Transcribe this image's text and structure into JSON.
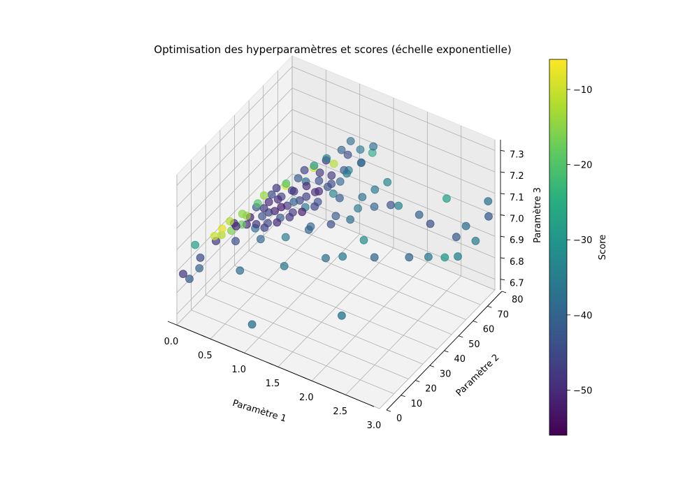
{
  "chart_data": {
    "type": "scatter",
    "projection": "3d",
    "title": "Optimisation des hyperparamètres et scores (échelle exponentielle)",
    "xlabel": "Paramètre 1",
    "ylabel": "Paramètre 2",
    "zlabel": "Paramètre 3",
    "colorbar_label": "Score",
    "colormap": "viridis",
    "xlim": [
      0.0,
      3.0
    ],
    "ylim": [
      0,
      80
    ],
    "zlim": [
      6.65,
      7.35
    ],
    "clim": [
      -56,
      -6
    ],
    "x_ticks": [
      "0.0",
      "0.5",
      "1.0",
      "1.5",
      "2.0",
      "2.5",
      "3.0"
    ],
    "y_ticks": [
      "0",
      "10",
      "20",
      "30",
      "40",
      "50",
      "60",
      "70",
      "80"
    ],
    "z_ticks": [
      "6.7",
      "6.8",
      "6.9",
      "7.0",
      "7.1",
      "7.2",
      "7.3"
    ],
    "colorbar_ticks": [
      "−10",
      "−20",
      "−30",
      "−40",
      "−50"
    ],
    "grid": true,
    "points": [
      [
        0.05,
        2,
        6.88,
        -48
      ],
      [
        0.08,
        5,
        6.84,
        -42
      ],
      [
        0.1,
        8,
        6.98,
        -28
      ],
      [
        0.12,
        10,
        6.86,
        -40
      ],
      [
        0.22,
        6,
        6.95,
        -45
      ],
      [
        0.3,
        12,
        7.02,
        -10
      ],
      [
        0.35,
        15,
        7.04,
        -8
      ],
      [
        0.4,
        18,
        7.06,
        -12
      ],
      [
        0.45,
        20,
        7.03,
        -50
      ],
      [
        0.5,
        22,
        7.08,
        -15
      ],
      [
        0.55,
        25,
        7.05,
        -52
      ],
      [
        0.6,
        28,
        7.1,
        -20
      ],
      [
        0.65,
        30,
        7.07,
        -48
      ],
      [
        0.7,
        33,
        7.12,
        -45
      ],
      [
        0.75,
        35,
        7.09,
        -50
      ],
      [
        0.8,
        38,
        7.14,
        -9
      ],
      [
        0.85,
        40,
        7.11,
        -46
      ],
      [
        0.9,
        42,
        7.16,
        -42
      ],
      [
        0.95,
        45,
        7.13,
        -38
      ],
      [
        1.0,
        48,
        7.18,
        -10
      ],
      [
        1.05,
        50,
        7.15,
        -48
      ],
      [
        1.1,
        52,
        7.2,
        -50
      ],
      [
        1.15,
        55,
        7.17,
        -12
      ],
      [
        1.2,
        58,
        7.22,
        -40
      ],
      [
        1.25,
        60,
        7.19,
        -45
      ],
      [
        0.48,
        26,
        7.0,
        -50
      ],
      [
        0.58,
        32,
        7.01,
        -44
      ],
      [
        0.68,
        36,
        7.02,
        -52
      ],
      [
        0.78,
        40,
        7.03,
        -48
      ],
      [
        0.88,
        44,
        7.04,
        -46
      ],
      [
        0.98,
        50,
        7.05,
        -50
      ],
      [
        1.08,
        54,
        7.06,
        -44
      ],
      [
        1.18,
        58,
        7.07,
        -40
      ],
      [
        0.52,
        30,
        6.96,
        -38
      ],
      [
        0.62,
        34,
        6.97,
        -46
      ],
      [
        0.72,
        38,
        6.98,
        -42
      ],
      [
        0.82,
        42,
        6.99,
        -48
      ],
      [
        0.92,
        46,
        7.0,
        -36
      ],
      [
        1.02,
        50,
        7.01,
        -44
      ],
      [
        1.12,
        56,
        7.02,
        -34
      ],
      [
        1.22,
        62,
        7.1,
        -35
      ],
      [
        1.32,
        66,
        7.12,
        -38
      ],
      [
        1.4,
        70,
        7.15,
        -26
      ],
      [
        0.4,
        22,
        6.94,
        -44
      ],
      [
        0.6,
        30,
        6.92,
        -40
      ],
      [
        0.8,
        38,
        6.9,
        -36
      ],
      [
        1.0,
        46,
        6.92,
        -40
      ],
      [
        1.2,
        54,
        6.94,
        -42
      ],
      [
        1.4,
        60,
        6.96,
        -36
      ],
      [
        1.6,
        62,
        6.98,
        -40
      ],
      [
        1.8,
        64,
        7.0,
        -44
      ],
      [
        0.55,
        18,
        6.85,
        -38
      ],
      [
        0.95,
        30,
        6.84,
        -36
      ],
      [
        1.35,
        40,
        6.86,
        -38
      ],
      [
        1.7,
        50,
        6.92,
        -32
      ],
      [
        2.0,
        60,
        7.05,
        -34
      ],
      [
        2.2,
        65,
        7.0,
        -40
      ],
      [
        2.3,
        68,
        6.95,
        -44
      ],
      [
        2.5,
        70,
        7.08,
        -28
      ],
      [
        2.6,
        72,
        6.9,
        -42
      ],
      [
        2.7,
        74,
        6.95,
        -38
      ],
      [
        2.8,
        76,
        6.88,
        -36
      ],
      [
        2.95,
        78,
        7.0,
        -42
      ],
      [
        2.9,
        80,
        7.05,
        -38
      ],
      [
        2.4,
        62,
        6.85,
        -36
      ],
      [
        2.6,
        64,
        6.86,
        -30
      ],
      [
        2.75,
        66,
        6.87,
        -34
      ],
      [
        2.2,
        58,
        6.85,
        -40
      ],
      [
        1.9,
        48,
        6.88,
        -40
      ],
      [
        1.6,
        40,
        6.9,
        -36
      ],
      [
        1.8,
        30,
        6.72,
        -36
      ],
      [
        0.9,
        10,
        6.7,
        -38
      ],
      [
        1.15,
        50,
        7.23,
        -34
      ],
      [
        1.05,
        46,
        7.21,
        -30
      ],
      [
        0.95,
        44,
        7.19,
        -46
      ],
      [
        1.25,
        62,
        7.24,
        -38
      ],
      [
        1.35,
        64,
        7.2,
        -36
      ],
      [
        0.85,
        36,
        7.17,
        -20
      ],
      [
        0.75,
        34,
        7.15,
        -48
      ],
      [
        0.65,
        30,
        7.13,
        -14
      ],
      [
        0.7,
        28,
        7.0,
        -46
      ],
      [
        0.8,
        32,
        7.01,
        -50
      ],
      [
        0.9,
        36,
        7.02,
        -48
      ],
      [
        1.0,
        40,
        7.03,
        -52
      ],
      [
        1.1,
        44,
        7.04,
        -46
      ],
      [
        1.3,
        52,
        7.05,
        -42
      ],
      [
        0.45,
        24,
        7.01,
        -18
      ],
      [
        0.38,
        20,
        7.0,
        -16
      ],
      [
        0.58,
        28,
        7.08,
        -44
      ],
      [
        0.68,
        32,
        7.09,
        -50
      ],
      [
        0.78,
        36,
        7.1,
        -46
      ],
      [
        0.88,
        40,
        7.11,
        -48
      ],
      [
        0.98,
        44,
        7.12,
        -50
      ],
      [
        1.08,
        48,
        7.13,
        -44
      ],
      [
        1.18,
        52,
        7.14,
        -48
      ],
      [
        1.28,
        56,
        7.15,
        -42
      ],
      [
        1.1,
        40,
        6.96,
        -40
      ],
      [
        1.3,
        46,
        6.97,
        -44
      ],
      [
        1.5,
        50,
        6.99,
        -38
      ],
      [
        1.55,
        56,
        7.06,
        -38
      ],
      [
        1.65,
        60,
        7.08,
        -36
      ],
      [
        1.75,
        64,
        7.1,
        -34
      ],
      [
        0.28,
        14,
        6.98,
        -48
      ],
      [
        0.32,
        16,
        7.0,
        -12
      ],
      [
        0.42,
        20,
        7.04,
        -50
      ],
      [
        0.52,
        24,
        7.06,
        -14
      ],
      [
        0.62,
        26,
        7.02,
        -48
      ],
      [
        0.72,
        30,
        7.06,
        -46
      ],
      [
        0.82,
        34,
        7.07,
        -52
      ],
      [
        0.92,
        38,
        7.08,
        -40
      ],
      [
        1.02,
        42,
        7.09,
        -46
      ],
      [
        1.12,
        46,
        7.1,
        -50
      ],
      [
        1.22,
        50,
        7.12,
        -44
      ],
      [
        1.32,
        56,
        7.14,
        -36
      ],
      [
        1.45,
        60,
        7.18,
        -40
      ],
      [
        1.5,
        66,
        7.22,
        -38
      ]
    ]
  }
}
